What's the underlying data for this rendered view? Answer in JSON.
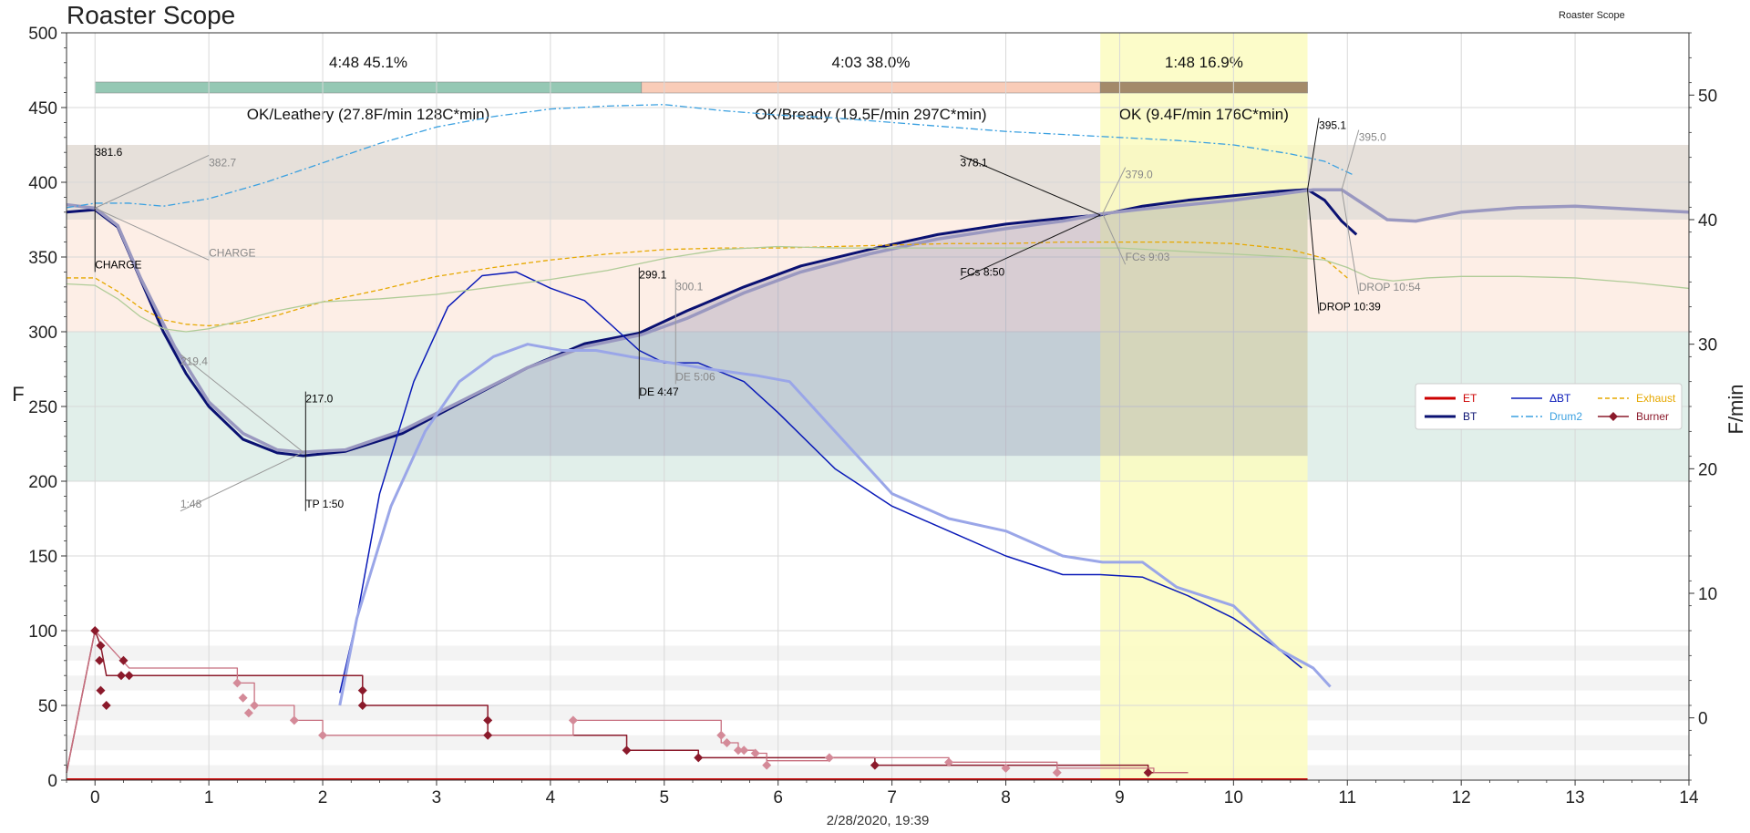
{
  "app": {
    "title": "Roaster Scope",
    "watermark": "Roaster Scope",
    "timestamp": "2/28/2020, 19:39"
  },
  "chart_data": {
    "type": "line",
    "title": "Roaster Scope",
    "xlabel": "2/28/2020, 19:39",
    "ylabel": "F",
    "y2label": "F/min",
    "xlim": [
      -0.25,
      14
    ],
    "ylim": [
      0,
      500
    ],
    "y2lim": [
      -5,
      55
    ],
    "xticks": [
      "0",
      "1",
      "2",
      "3",
      "4",
      "5",
      "6",
      "7",
      "8",
      "9",
      "10",
      "11",
      "12",
      "13",
      "14"
    ],
    "yticks": [
      "0",
      "50",
      "100",
      "150",
      "200",
      "250",
      "300",
      "350",
      "400",
      "450",
      "500"
    ],
    "y2ticks": [
      "0",
      "10",
      "20",
      "30",
      "40",
      "50"
    ],
    "grid": true,
    "legend_position": "right",
    "legend": [
      {
        "name": "ET",
        "color": "#cc0000",
        "style": "solid-thick"
      },
      {
        "name": "BT",
        "color": "#0a1172",
        "style": "solid-thick"
      },
      {
        "name": "ΔBT",
        "color": "#0a1ab8",
        "style": "solid"
      },
      {
        "name": "Drum2",
        "color": "#3aa0e0",
        "style": "dashdot"
      },
      {
        "name": "Exhaust",
        "color": "#e6a800",
        "style": "dashed"
      },
      {
        "name": "Burner",
        "color": "#8b1a2b",
        "style": "marker"
      }
    ],
    "phases": [
      {
        "label": "4:48  45.1%",
        "start": 0,
        "end": 4.8,
        "color": "#95c8b4"
      },
      {
        "label": "4:03  38.0%",
        "start": 4.8,
        "end": 8.83,
        "color": "#f9ccb8"
      },
      {
        "label": "1:48  16.9%",
        "start": 8.83,
        "end": 10.65,
        "color": "#a38a6a"
      }
    ],
    "phase_evaluations": [
      "OK/Leathery (27.8F/min  128C*min)",
      "OK/Bready (19.5F/min  297C*min)",
      "OK (9.4F/min  176C*min)"
    ],
    "bands": [
      {
        "from": 375,
        "to": 425,
        "color": "#e6e0da"
      },
      {
        "from": 300,
        "to": 375,
        "color": "#fdeee6"
      },
      {
        "from": 200,
        "to": 300,
        "color": "#e1efea"
      }
    ],
    "highlight": {
      "from": 8.83,
      "to": 10.65,
      "color": "#fbfbc0"
    },
    "series": [
      {
        "name": "BT",
        "color": "#0a1172",
        "axis": "left",
        "x": [
          -0.25,
          0,
          0.2,
          0.4,
          0.6,
          0.8,
          1.0,
          1.3,
          1.6,
          1.83,
          2.2,
          2.7,
          3.2,
          3.8,
          4.3,
          4.78,
          5.2,
          5.7,
          6.2,
          6.8,
          7.4,
          8.0,
          8.5,
          8.83,
          9.2,
          9.6,
          10.0,
          10.4,
          10.65,
          10.8,
          10.95,
          11.08
        ],
        "y": [
          380,
          381.6,
          370,
          335,
          300,
          272,
          250,
          228,
          219,
          217.0,
          220,
          232,
          252,
          276,
          292,
          299.1,
          314,
          330,
          344,
          355,
          365,
          372,
          376,
          378.1,
          384,
          388,
          391,
          394,
          395.1,
          388,
          374,
          365
        ]
      },
      {
        "name": "BT (background)",
        "color": "#9a98c0",
        "axis": "left",
        "x": [
          -0.25,
          0,
          0.2,
          0.4,
          0.7,
          1.0,
          1.3,
          1.6,
          1.83,
          2.2,
          2.7,
          3.2,
          3.8,
          4.3,
          4.8,
          5.2,
          5.7,
          6.2,
          6.8,
          7.4,
          8.0,
          8.5,
          8.85,
          9.2,
          9.6,
          10.0,
          10.4,
          10.7,
          10.95,
          11.15,
          11.35,
          11.6,
          12.0,
          12.5,
          13.0,
          13.5,
          14.0
        ],
        "y": [
          385,
          382.7,
          371,
          336,
          290,
          253,
          232,
          221,
          219.4,
          221,
          234,
          253,
          276,
          290,
          298,
          309,
          326,
          340,
          352,
          362,
          369,
          374,
          379.0,
          382,
          385,
          388,
          392,
          395.0,
          395,
          385,
          375,
          374,
          380,
          383,
          384,
          382,
          380
        ]
      },
      {
        "name": "ΔBT",
        "color": "#0a1ab8",
        "axis": "right",
        "x": [
          2.15,
          2.3,
          2.5,
          2.8,
          3.1,
          3.4,
          3.7,
          4.0,
          4.3,
          4.6,
          4.78,
          5.0,
          5.3,
          5.7,
          6.0,
          6.5,
          7.0,
          7.5,
          8.0,
          8.5,
          8.83,
          9.2,
          9.6,
          10.0,
          10.4,
          10.6
        ],
        "y": [
          2,
          8,
          18,
          27,
          33,
          35.5,
          35.8,
          34.5,
          33.5,
          31,
          29.5,
          28.5,
          28.5,
          27,
          24.5,
          20,
          17,
          15,
          13,
          11.5,
          11.5,
          11.3,
          9.8,
          8,
          5.5,
          4
        ]
      },
      {
        "name": "ΔBT (background)",
        "color": "#9aa6e8",
        "axis": "right",
        "x": [
          2.15,
          2.3,
          2.6,
          2.9,
          3.2,
          3.5,
          3.8,
          4.1,
          4.4,
          4.7,
          5.06,
          5.4,
          5.8,
          6.1,
          6.5,
          7.0,
          7.5,
          8.0,
          8.5,
          8.85,
          9.2,
          9.5,
          10.0,
          10.4,
          10.7,
          10.85
        ],
        "y": [
          1,
          8,
          17,
          23,
          27,
          29,
          30,
          29.5,
          29.5,
          29,
          28.5,
          28,
          27.5,
          27,
          23,
          18,
          16,
          15,
          13,
          12.5,
          12.5,
          10.5,
          9,
          5.5,
          4,
          2.5
        ]
      },
      {
        "name": "Drum2",
        "color": "#3aa0e0",
        "axis": "left",
        "x": [
          -0.25,
          0,
          0.3,
          0.6,
          1.0,
          1.5,
          2.0,
          2.5,
          3.0,
          3.5,
          4.0,
          4.5,
          5.0,
          5.5,
          6.0,
          6.5,
          7.0,
          7.5,
          8.0,
          8.5,
          9.0,
          9.5,
          10.0,
          10.5,
          10.8,
          11.05
        ],
        "y": [
          383,
          386,
          386,
          384,
          389,
          400,
          413,
          426,
          437,
          444,
          449,
          451,
          452,
          448,
          445,
          443,
          440,
          437,
          434,
          432,
          430,
          428,
          425,
          419,
          414,
          405
        ]
      },
      {
        "name": "Exhaust",
        "color": "#e6a800",
        "axis": "left",
        "x": [
          -0.25,
          0,
          0.2,
          0.4,
          0.6,
          0.8,
          1.0,
          1.3,
          1.6,
          2.0,
          2.5,
          3.0,
          3.5,
          4.0,
          4.5,
          5.0,
          5.5,
          6.0,
          6.5,
          7.0,
          7.5,
          8.0,
          8.5,
          9.0,
          9.5,
          10.0,
          10.5,
          10.8,
          11.0
        ],
        "y": [
          336,
          336,
          327,
          316,
          308,
          305,
          304,
          306,
          311,
          320,
          328,
          337,
          343,
          348,
          352,
          355,
          356,
          356,
          357,
          358,
          359,
          359,
          360,
          360,
          360,
          359,
          355,
          349,
          336
        ]
      },
      {
        "name": "Exhaust (background)",
        "color": "#b0cc98",
        "axis": "left",
        "x": [
          -0.25,
          0,
          0.2,
          0.4,
          0.6,
          0.8,
          1.0,
          1.3,
          1.6,
          2.0,
          2.5,
          3.0,
          3.5,
          4.0,
          4.5,
          5.0,
          5.5,
          6.0,
          6.5,
          7.0,
          7.5,
          8.0,
          8.5,
          9.0,
          9.5,
          10.0,
          10.5,
          10.8,
          11.0,
          11.2,
          11.4,
          11.7,
          12.0,
          12.5,
          13.0,
          13.5,
          14.0
        ],
        "y": [
          332,
          331,
          322,
          310,
          302,
          300,
          302,
          308,
          314,
          320,
          322,
          325,
          330,
          335,
          341,
          349,
          355,
          357,
          356,
          356,
          356,
          356,
          356,
          356,
          354,
          352,
          350,
          348,
          343,
          336,
          334,
          336,
          337,
          337,
          336,
          333,
          329
        ]
      },
      {
        "name": "Burner",
        "color": "#8b1a2b",
        "axis": "left",
        "style": "step",
        "x": [
          -0.25,
          0,
          0.05,
          0.1,
          2.35,
          2.35,
          3.45,
          3.45,
          4.67,
          4.67,
          5.3,
          5.3,
          6.85,
          6.85,
          9.25,
          9.25,
          9.6
        ],
        "y": [
          5,
          100,
          90,
          70,
          70,
          50,
          50,
          30,
          30,
          20,
          20,
          15,
          15,
          10,
          10,
          5,
          5
        ]
      },
      {
        "name": "Burner (background)",
        "color": "#c87080",
        "axis": "left",
        "style": "step",
        "x": [
          -0.25,
          0,
          0.3,
          1.25,
          1.25,
          1.4,
          1.4,
          1.75,
          1.75,
          2.0,
          2.0,
          4.2,
          4.2,
          5.5,
          5.5,
          5.65,
          5.65,
          5.8,
          5.8,
          5.9,
          5.9,
          6.45,
          6.45,
          7.5,
          7.5,
          8.45,
          8.45,
          9.3,
          9.3,
          9.6
        ],
        "y": [
          5,
          100,
          75,
          75,
          65,
          65,
          50,
          50,
          40,
          40,
          30,
          30,
          40,
          40,
          25,
          25,
          20,
          20,
          18,
          18,
          13,
          13,
          15,
          15,
          12,
          12,
          8,
          8,
          5,
          5
        ]
      }
    ],
    "markers": {
      "burner": {
        "x": [
          0,
          0.04,
          0.05,
          0.05,
          0.1,
          0.23,
          0.25,
          0.3,
          2.35,
          2.35,
          3.45,
          3.45,
          4.67,
          5.3,
          6.85,
          9.25
        ],
        "y": [
          100,
          80,
          90,
          60,
          50,
          70,
          80,
          70,
          50,
          60,
          30,
          40,
          20,
          15,
          10,
          5
        ]
      },
      "burner_bg": {
        "x": [
          1.25,
          1.3,
          1.35,
          1.4,
          1.75,
          2.0,
          4.2,
          5.5,
          5.55,
          5.65,
          5.7,
          5.8,
          5.9,
          6.45,
          7.5,
          8.0,
          8.45
        ],
        "y": [
          65,
          55,
          45,
          50,
          40,
          30,
          40,
          30,
          25,
          20,
          20,
          18,
          10,
          15,
          12,
          8,
          5
        ]
      }
    },
    "annotations": [
      {
        "text": "381.6",
        "x": 0,
        "y": 381.6,
        "lx": 0,
        "ly": 425,
        "color": "#000000"
      },
      {
        "text": "CHARGE",
        "x": 0,
        "y": 381.6,
        "lx": 0,
        "ly": 340,
        "color": "#000000"
      },
      {
        "text": "382.7",
        "x": 0,
        "y": 382.7,
        "lx": 1.0,
        "ly": 418,
        "color": "#888888"
      },
      {
        "text": "CHARGE",
        "x": 0,
        "y": 382.7,
        "lx": 1.0,
        "ly": 348,
        "color": "#888888"
      },
      {
        "text": "219.4",
        "x": 1.83,
        "y": 219.4,
        "lx": 0.75,
        "ly": 285,
        "color": "#888888"
      },
      {
        "text": "1:48",
        "x": 1.83,
        "y": 219.4,
        "lx": 0.75,
        "ly": 180,
        "color": "#888888"
      },
      {
        "text": "217.0",
        "x": 1.85,
        "y": 217.0,
        "lx": 1.85,
        "ly": 260,
        "color": "#000000"
      },
      {
        "text": "TP 1:50",
        "x": 1.85,
        "y": 217.0,
        "lx": 1.85,
        "ly": 180,
        "color": "#000000"
      },
      {
        "text": "299.1",
        "x": 4.78,
        "y": 299.1,
        "lx": 4.78,
        "ly": 343,
        "color": "#000000"
      },
      {
        "text": "DE 4:47",
        "x": 4.78,
        "y": 299.1,
        "lx": 4.78,
        "ly": 255,
        "color": "#000000"
      },
      {
        "text": "300.1",
        "x": 5.1,
        "y": 300.1,
        "lx": 5.1,
        "ly": 335,
        "color": "#888888"
      },
      {
        "text": "DE 5:06",
        "x": 5.1,
        "y": 300.1,
        "lx": 5.1,
        "ly": 265,
        "color": "#888888"
      },
      {
        "text": "378.1",
        "x": 8.83,
        "y": 378.1,
        "lx": 7.6,
        "ly": 418,
        "color": "#000000"
      },
      {
        "text": "FCs 8:50",
        "x": 8.83,
        "y": 378.1,
        "lx": 7.6,
        "ly": 335,
        "color": "#000000"
      },
      {
        "text": "379.0",
        "x": 8.85,
        "y": 379.0,
        "lx": 9.05,
        "ly": 410,
        "color": "#888888"
      },
      {
        "text": "FCs 9:03",
        "x": 8.85,
        "y": 379.0,
        "lx": 9.05,
        "ly": 345,
        "color": "#888888"
      },
      {
        "text": "395.1",
        "x": 10.65,
        "y": 395.1,
        "lx": 10.75,
        "ly": 443,
        "color": "#000000"
      },
      {
        "text": "DROP 10:39",
        "x": 10.65,
        "y": 395.1,
        "lx": 10.75,
        "ly": 312,
        "color": "#000000"
      },
      {
        "text": "395.0",
        "x": 10.95,
        "y": 395.0,
        "lx": 11.1,
        "ly": 435,
        "color": "#888888"
      },
      {
        "text": "DROP 10:54",
        "x": 10.95,
        "y": 395.0,
        "lx": 11.1,
        "ly": 325,
        "color": "#888888"
      }
    ]
  }
}
